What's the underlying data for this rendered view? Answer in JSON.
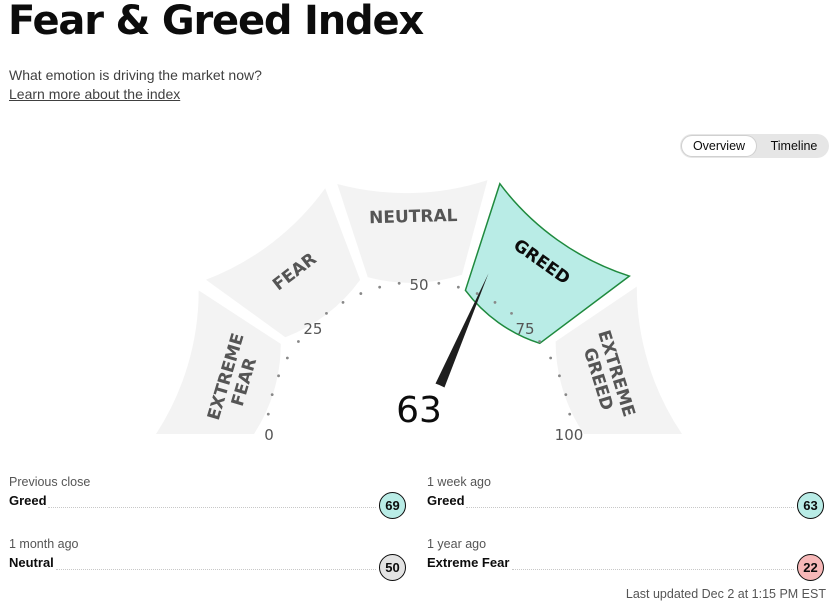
{
  "title": "Fear & Greed Index",
  "subtitle": "What emotion is driving the market now?",
  "learn_more": "Learn more about the index",
  "toggle": {
    "overview": "Overview",
    "timeline": "Timeline",
    "selected": "Overview"
  },
  "gauge": {
    "value": 63,
    "value_label": "63",
    "active_segment": "GREED",
    "segments": [
      {
        "lines": [
          "EXTREME",
          "FEAR"
        ]
      },
      {
        "lines": [
          "FEAR"
        ]
      },
      {
        "lines": [
          "NEUTRAL"
        ]
      },
      {
        "lines": [
          "GREED"
        ]
      },
      {
        "lines": [
          "EXTREME",
          "GREED"
        ]
      }
    ],
    "ticks": [
      "0",
      "25",
      "50",
      "75",
      "100"
    ],
    "colors": {
      "active_fill": "#b9ece6",
      "active_border": "#1f8a3e",
      "segment_fill": "#f3f3f3",
      "needle": "#1e1e1e"
    }
  },
  "stats": [
    {
      "label": "Previous close",
      "value": "Greed",
      "score": "69",
      "color": "#b9ece6"
    },
    {
      "label": "1 week ago",
      "value": "Greed",
      "score": "63",
      "color": "#b9ece6"
    },
    {
      "label": "1 month ago",
      "value": "Neutral",
      "score": "50",
      "color": "#e3e3e3"
    },
    {
      "label": "1 year ago",
      "value": "Extreme Fear",
      "score": "22",
      "color": "#f7b8b8"
    }
  ],
  "updated": "Last updated Dec 2 at 1:15 PM EST"
}
